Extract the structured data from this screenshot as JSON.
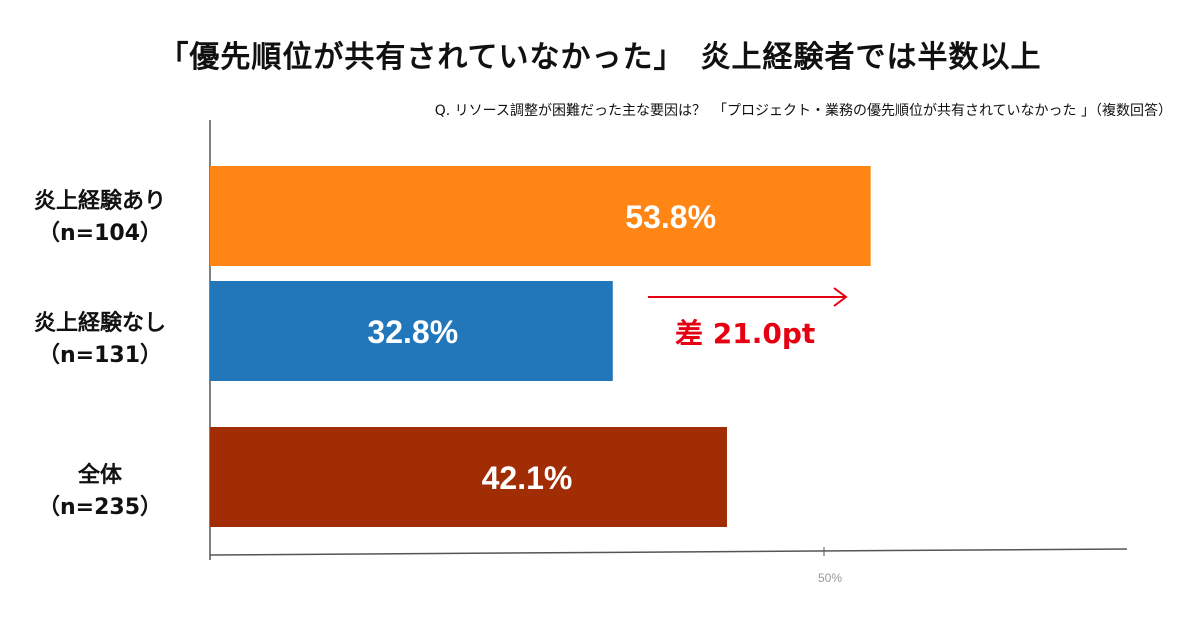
{
  "title": "「優先順位が共有されていなかった」　炎上経験者では半数以上",
  "subtitle": "Q. リソース調整が困難だった主な要因は？　「プロジェクト・業務の優先順位が共有されていなかった 」（複数回答）",
  "annotation": "差 21.0pt",
  "chart_data": {
    "type": "bar",
    "orientation": "horizontal",
    "categories": [
      {
        "name": "炎上経験あり",
        "n": "（n=104）",
        "value": 53.8,
        "label": "53.8%",
        "color": "#ff8514"
      },
      {
        "name": "炎上経験なし",
        "n": "（n=131）",
        "value": 32.8,
        "label": "32.8%",
        "color": "#2277bb"
      },
      {
        "name": "全体",
        "n": "（n=235）",
        "value": 42.1,
        "label": "42.1%",
        "color": "#a12d05"
      }
    ],
    "xlim": [
      0,
      100
    ],
    "xticks": [
      {
        "value": 50,
        "label": "50%"
      }
    ],
    "grid": false,
    "legend": "none",
    "accent_color": "#e60012"
  }
}
